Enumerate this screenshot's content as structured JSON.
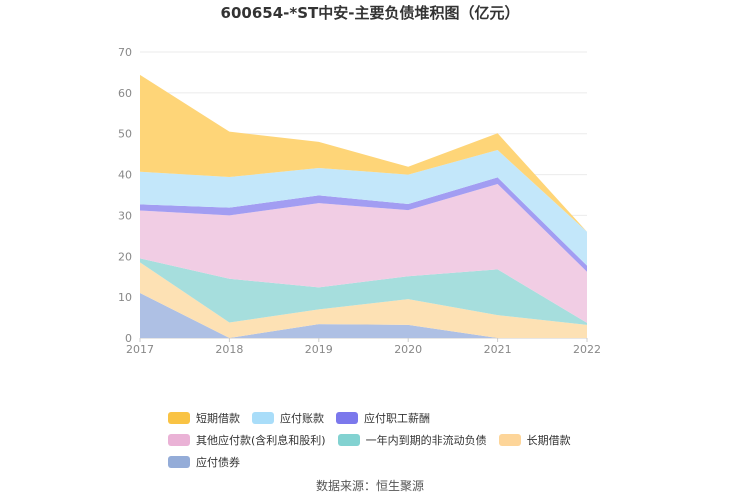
{
  "chart_data": {
    "type": "area",
    "stacked": true,
    "title": "600654-*ST中安-主要负债堆积图（亿元）",
    "x": [
      "2017",
      "2018",
      "2019",
      "2020",
      "2021",
      "2022"
    ],
    "ylim": [
      0,
      70
    ],
    "yticks": [
      "0",
      "10",
      "20",
      "30",
      "40",
      "50",
      "60",
      "70"
    ],
    "grid": true,
    "legend_position": "bottom",
    "series": [
      {
        "name": "应付债券",
        "color": "#aec0e4",
        "values": [
          11.0,
          0.0,
          3.4,
          3.2,
          0.0,
          0.0
        ]
      },
      {
        "name": "长期借款",
        "color": "#fde1b4",
        "values": [
          7.5,
          3.8,
          3.6,
          6.3,
          5.6,
          3.2
        ]
      },
      {
        "name": "一年内到期的非流动负债",
        "color": "#a6dedd",
        "values": [
          1.0,
          10.7,
          5.4,
          5.6,
          11.2,
          0.5
        ]
      },
      {
        "name": "其他应付款(含利息和股利)",
        "color": "#f1cde4",
        "values": [
          11.7,
          15.5,
          20.6,
          16.2,
          20.9,
          12.5
        ]
      },
      {
        "name": "应付职工薪酬",
        "color": "#a29df2",
        "values": [
          1.5,
          1.9,
          1.9,
          1.5,
          1.6,
          1.5
        ]
      },
      {
        "name": "应付账款",
        "color": "#c3e7fa",
        "values": [
          8.0,
          7.5,
          6.7,
          7.2,
          6.7,
          8.3
        ]
      },
      {
        "name": "短期借款",
        "color": "#fed578",
        "values": [
          23.7,
          11.1,
          6.4,
          1.9,
          4.1,
          0.0
        ]
      }
    ]
  },
  "legend": {
    "items": [
      {
        "label": "短期借款",
        "color": "#f9c344"
      },
      {
        "label": "应付账款",
        "color": "#a9ddf9"
      },
      {
        "label": "应付职工薪酬",
        "color": "#7b78ec"
      },
      {
        "label": "其他应付款(含利息和股利)",
        "color": "#eab2d6"
      },
      {
        "label": "一年内到期的非流动负债",
        "color": "#82d2d1"
      },
      {
        "label": "长期借款",
        "color": "#fdd599"
      },
      {
        "label": "应付债券",
        "color": "#94acd8"
      }
    ]
  },
  "source": "数据来源：恒生聚源"
}
